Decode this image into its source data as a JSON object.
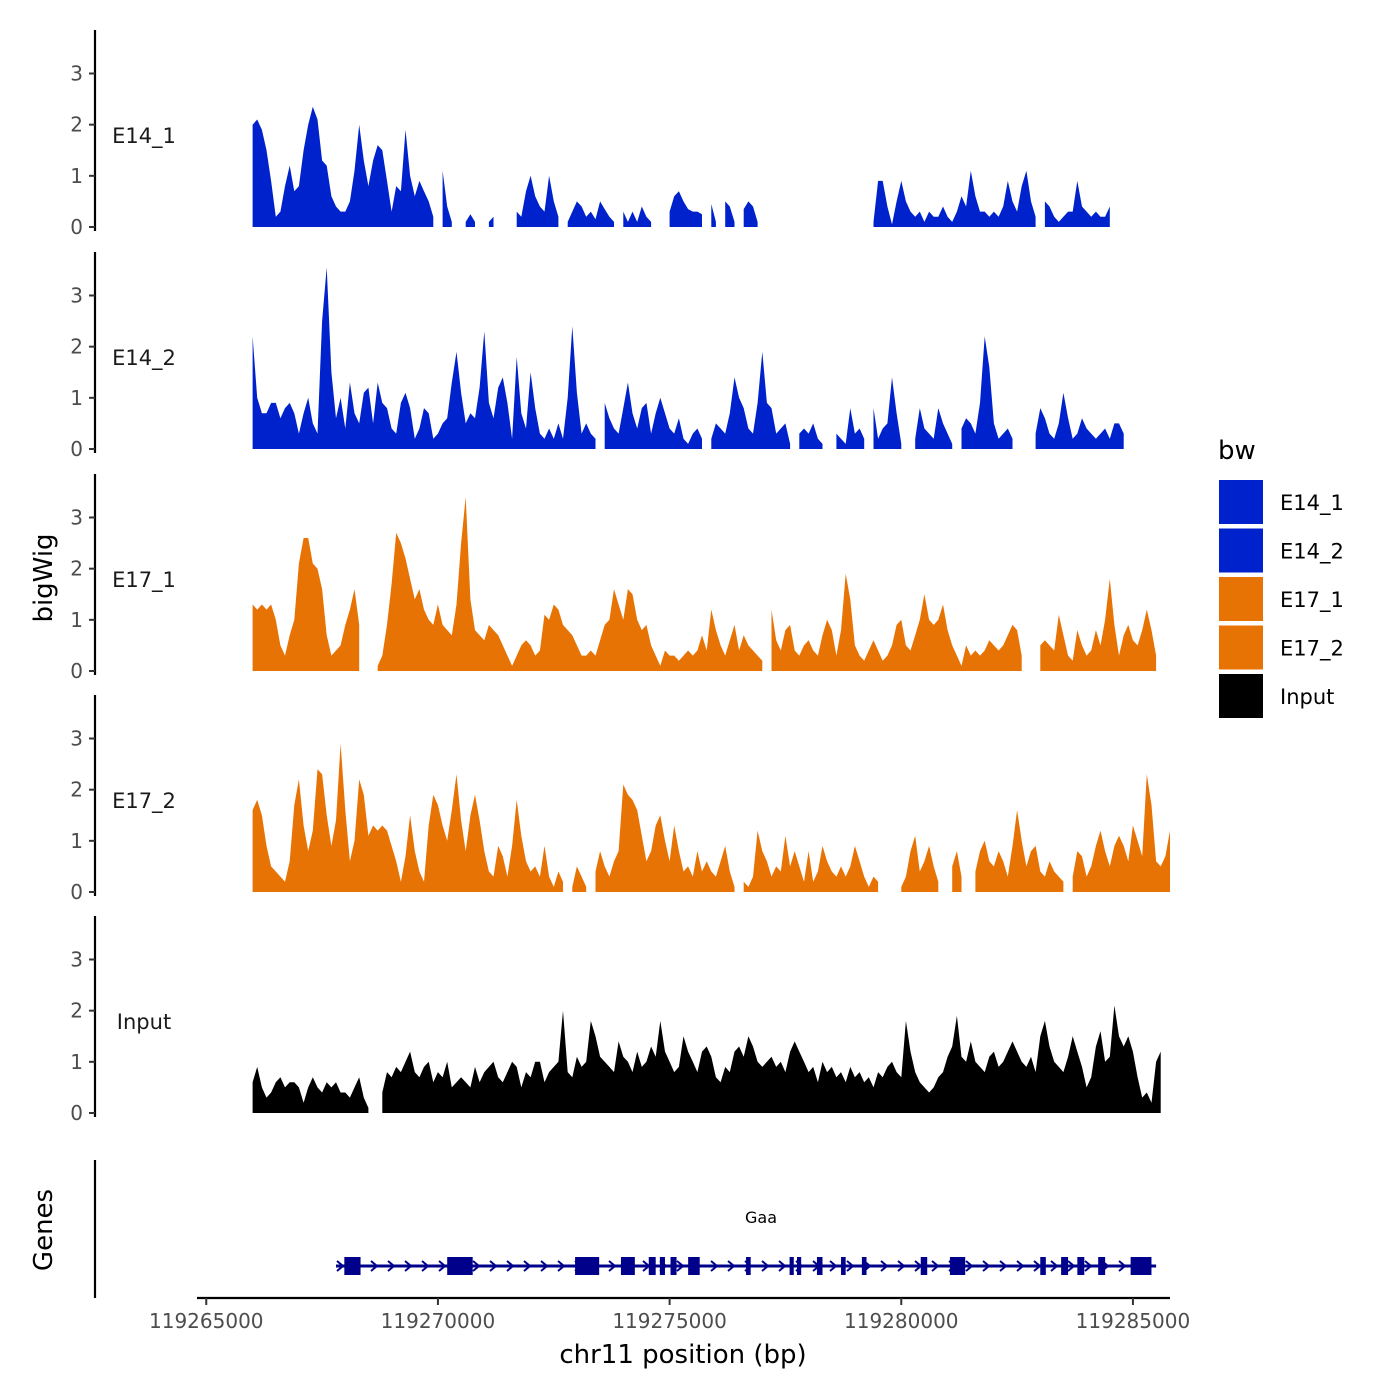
{
  "chart_data": {
    "type": "area",
    "xlabel": "chr11 position (bp)",
    "ylabel": "bigWig",
    "genes_label": "Genes",
    "xlim": [
      119264800,
      119285800
    ],
    "xticks": [
      119265000,
      119270000,
      119275000,
      119280000,
      119285000
    ],
    "xtick_labels": [
      "119265000",
      "119270000",
      "119275000",
      "119280000",
      "119285000"
    ],
    "ylim": [
      0,
      3.85
    ],
    "yticks": [
      0,
      1,
      2,
      3
    ],
    "ytick_labels": [
      "0",
      "1",
      "2",
      "3"
    ],
    "legend": {
      "title": "bw",
      "position": "right",
      "entries": [
        {
          "label": "E14_1",
          "color": "#0022CC"
        },
        {
          "label": "E14_2",
          "color": "#0022CC"
        },
        {
          "label": "E17_1",
          "color": "#E87305"
        },
        {
          "label": "E17_2",
          "color": "#E87305"
        },
        {
          "label": "Input",
          "color": "#000000"
        }
      ]
    },
    "x_start": 119266000,
    "x_step": 100,
    "series": [
      {
        "name": "E14_1",
        "color": "#0022CC",
        "values": [
          2.0,
          2.1,
          1.9,
          1.5,
          0.9,
          0.2,
          0.3,
          0.8,
          1.2,
          0.7,
          0.8,
          1.5,
          2.0,
          2.35,
          2.1,
          1.3,
          1.2,
          0.6,
          0.4,
          0.3,
          0.3,
          0.5,
          1.1,
          2.0,
          1.3,
          0.8,
          1.3,
          1.6,
          1.5,
          0.9,
          0.3,
          0.8,
          0.7,
          1.9,
          1.0,
          0.6,
          0.9,
          0.7,
          0.5,
          0.2,
          null,
          1.1,
          0.4,
          0.1,
          null,
          null,
          0.1,
          0.25,
          0.1,
          null,
          null,
          0.1,
          0.2,
          null,
          null,
          null,
          null,
          0.3,
          0.2,
          0.7,
          1.0,
          0.6,
          0.4,
          0.3,
          1.0,
          0.5,
          0.2,
          null,
          0.1,
          0.3,
          0.5,
          0.4,
          0.2,
          0.3,
          0.15,
          0.5,
          0.35,
          0.2,
          0.1,
          null,
          0.3,
          0.1,
          0.3,
          0.1,
          0.4,
          0.2,
          0.1,
          null,
          null,
          null,
          0.3,
          0.6,
          0.7,
          0.5,
          0.35,
          0.3,
          0.3,
          0.25,
          null,
          0.45,
          0.1,
          null,
          0.5,
          0.4,
          0.1,
          null,
          0.35,
          0.5,
          0.4,
          0.1,
          null,
          null,
          null,
          null,
          null,
          null,
          null,
          null,
          null,
          null,
          null,
          null,
          null,
          null,
          null,
          null,
          null,
          null,
          null,
          null,
          null,
          null,
          null,
          null,
          0.1,
          0.9,
          0.9,
          0.4,
          0.05,
          0.5,
          0.9,
          0.5,
          0.3,
          0.2,
          0.3,
          0.1,
          0.3,
          0.2,
          0.2,
          0.4,
          0.2,
          0.1,
          0.3,
          0.6,
          0.4,
          1.1,
          0.6,
          0.3,
          0.3,
          0.2,
          0.3,
          0.2,
          0.4,
          0.9,
          0.5,
          0.3,
          0.8,
          1.1,
          0.5,
          0.2,
          null,
          0.5,
          0.4,
          0.2,
          0.1,
          0.2,
          0.3,
          0.3,
          0.9,
          0.4,
          0.3,
          0.2,
          0.3,
          0.2,
          0.2,
          0.4
        ]
      },
      {
        "name": "E14_2",
        "color": "#0022CC",
        "values": [
          2.2,
          1.0,
          0.7,
          0.7,
          0.9,
          0.9,
          0.6,
          0.8,
          0.9,
          0.7,
          0.3,
          0.7,
          1.0,
          0.5,
          0.3,
          2.5,
          3.55,
          1.5,
          0.6,
          1.0,
          0.4,
          1.3,
          0.7,
          0.5,
          1.1,
          1.2,
          0.5,
          1.3,
          0.9,
          0.8,
          0.4,
          0.3,
          0.9,
          1.1,
          0.8,
          0.2,
          0.4,
          0.8,
          0.7,
          0.2,
          0.3,
          0.5,
          0.6,
          1.3,
          1.9,
          1.1,
          0.5,
          0.7,
          0.6,
          1.2,
          2.3,
          0.9,
          0.6,
          1.2,
          1.4,
          0.9,
          0.2,
          1.8,
          0.7,
          0.4,
          1.5,
          0.8,
          0.3,
          0.2,
          0.4,
          0.2,
          0.5,
          0.2,
          1.0,
          2.4,
          1.1,
          0.3,
          0.5,
          0.3,
          0.2,
          null,
          0.9,
          0.6,
          0.4,
          0.3,
          0.8,
          1.3,
          0.7,
          0.4,
          0.8,
          0.9,
          0.3,
          0.7,
          1.0,
          0.7,
          0.4,
          0.3,
          0.6,
          0.2,
          0.1,
          0.3,
          0.4,
          0.2,
          null,
          0.2,
          0.5,
          0.4,
          0.3,
          0.7,
          1.4,
          1.0,
          0.8,
          0.4,
          0.3,
          0.9,
          1.9,
          0.9,
          0.8,
          0.3,
          0.4,
          0.5,
          0.1,
          null,
          0.3,
          0.4,
          0.3,
          0.5,
          0.2,
          0.1,
          null,
          null,
          0.3,
          0.2,
          0.1,
          0.8,
          0.3,
          0.4,
          0.2,
          null,
          0.8,
          0.2,
          0.4,
          0.5,
          1.4,
          0.7,
          0.1,
          null,
          null,
          0.2,
          0.8,
          0.4,
          0.3,
          0.2,
          0.8,
          0.5,
          0.3,
          0.1,
          null,
          0.4,
          0.6,
          0.5,
          0.3,
          0.9,
          2.2,
          1.6,
          0.5,
          0.2,
          0.3,
          0.4,
          0.2,
          null,
          null,
          null,
          null,
          0.3,
          0.8,
          0.6,
          0.3,
          0.2,
          0.5,
          1.1,
          0.6,
          0.2,
          0.3,
          0.6,
          0.4,
          0.3,
          0.2,
          0.3,
          0.4,
          0.2,
          0.5,
          0.5,
          0.3
        ]
      },
      {
        "name": "E17_1",
        "color": "#E87305",
        "values": [
          1.3,
          1.2,
          1.3,
          1.2,
          1.3,
          1.0,
          0.5,
          0.3,
          0.7,
          1.0,
          2.1,
          2.6,
          2.6,
          2.1,
          2.0,
          1.6,
          0.7,
          0.3,
          0.4,
          0.5,
          0.9,
          1.2,
          1.6,
          0.9,
          null,
          null,
          null,
          0.1,
          0.3,
          0.9,
          1.7,
          2.7,
          2.5,
          2.2,
          1.8,
          1.4,
          1.6,
          1.2,
          1.0,
          0.9,
          1.3,
          0.9,
          0.8,
          0.7,
          1.3,
          2.5,
          3.4,
          1.4,
          0.8,
          0.7,
          0.6,
          0.9,
          0.8,
          0.7,
          0.5,
          0.3,
          0.1,
          0.3,
          0.5,
          0.6,
          0.5,
          0.3,
          0.4,
          1.1,
          1.0,
          1.3,
          1.2,
          0.9,
          0.8,
          0.7,
          0.5,
          0.3,
          0.3,
          0.4,
          0.3,
          0.6,
          0.9,
          1.0,
          1.6,
          1.3,
          1.0,
          1.6,
          1.5,
          1.0,
          0.8,
          0.9,
          0.5,
          0.3,
          0.1,
          0.4,
          0.3,
          0.3,
          0.2,
          0.3,
          0.4,
          0.3,
          0.4,
          0.7,
          0.4,
          1.2,
          0.8,
          0.5,
          0.3,
          0.6,
          0.9,
          0.4,
          0.7,
          0.5,
          0.4,
          0.3,
          0.2,
          null,
          1.2,
          0.6,
          0.4,
          0.8,
          0.9,
          0.4,
          0.3,
          0.5,
          0.6,
          0.4,
          0.3,
          0.7,
          1.0,
          0.8,
          0.3,
          0.8,
          1.9,
          1.4,
          0.5,
          0.3,
          0.2,
          0.4,
          0.6,
          0.4,
          0.2,
          0.3,
          0.5,
          0.9,
          1.0,
          0.5,
          0.4,
          0.7,
          1.0,
          1.5,
          1.0,
          0.9,
          1.0,
          1.3,
          0.8,
          0.5,
          0.3,
          0.1,
          0.5,
          0.3,
          0.4,
          0.3,
          0.4,
          0.6,
          0.5,
          0.4,
          0.5,
          0.7,
          0.9,
          0.8,
          0.3,
          null,
          null,
          null,
          0.5,
          0.6,
          0.5,
          0.4,
          1.1,
          0.7,
          0.3,
          0.2,
          0.8,
          0.5,
          0.3,
          0.4,
          0.8,
          0.5,
          1.0,
          1.8,
          0.9,
          0.3,
          0.7,
          0.9,
          0.6,
          0.5,
          0.8,
          1.2,
          0.8,
          0.3
        ]
      },
      {
        "name": "E17_2",
        "color": "#E87305",
        "values": [
          1.6,
          1.8,
          1.5,
          0.9,
          0.5,
          0.4,
          0.3,
          0.2,
          0.6,
          1.7,
          2.2,
          1.3,
          0.8,
          1.2,
          2.4,
          2.3,
          1.5,
          0.9,
          1.4,
          2.9,
          1.6,
          0.6,
          1.0,
          2.2,
          1.9,
          1.1,
          1.3,
          1.2,
          1.3,
          1.2,
          0.9,
          0.6,
          0.2,
          0.7,
          1.5,
          0.8,
          0.4,
          0.2,
          1.3,
          1.9,
          1.7,
          1.3,
          1.0,
          1.6,
          2.3,
          1.4,
          0.8,
          1.5,
          1.9,
          1.4,
          0.8,
          0.4,
          0.3,
          0.9,
          0.7,
          0.3,
          0.9,
          1.8,
          1.1,
          0.6,
          0.4,
          0.5,
          0.3,
          0.9,
          0.3,
          0.1,
          0.4,
          0.2,
          null,
          0.1,
          0.5,
          0.3,
          0.1,
          null,
          0.4,
          0.8,
          0.5,
          0.3,
          0.6,
          0.8,
          2.1,
          1.9,
          1.8,
          1.6,
          1.1,
          0.6,
          0.8,
          1.3,
          1.5,
          1.0,
          0.6,
          1.3,
          0.8,
          0.4,
          0.5,
          0.3,
          0.8,
          0.4,
          0.6,
          0.4,
          0.3,
          0.6,
          0.9,
          0.4,
          0.1,
          null,
          0.2,
          0.1,
          0.3,
          1.2,
          0.8,
          0.6,
          0.3,
          0.5,
          0.4,
          1.1,
          0.5,
          0.8,
          0.5,
          0.2,
          0.8,
          0.2,
          0.4,
          0.9,
          0.6,
          0.4,
          0.3,
          0.5,
          0.3,
          0.5,
          0.9,
          0.6,
          0.3,
          0.1,
          0.3,
          0.2,
          null,
          null,
          0.1,
          null,
          0.1,
          0.3,
          0.8,
          1.1,
          0.4,
          0.6,
          0.9,
          0.5,
          0.2,
          null,
          null,
          0.5,
          0.8,
          0.3,
          null,
          null,
          0.4,
          0.8,
          1.0,
          0.6,
          0.5,
          0.8,
          0.6,
          0.3,
          0.9,
          1.6,
          1.0,
          0.5,
          0.8,
          0.9,
          0.4,
          0.3,
          0.6,
          0.4,
          0.3,
          0.2,
          null,
          0.3,
          0.8,
          0.7,
          0.3,
          0.5,
          0.9,
          1.2,
          0.8,
          0.5,
          0.9,
          1.1,
          0.9,
          0.6,
          1.3,
          1.0,
          0.7,
          2.3,
          1.7,
          0.6,
          0.5,
          0.7,
          1.2
        ]
      },
      {
        "name": "Input",
        "color": "#000000",
        "values": [
          0.6,
          0.9,
          0.5,
          0.3,
          0.4,
          0.6,
          0.7,
          0.5,
          0.6,
          0.6,
          0.5,
          0.2,
          0.5,
          0.7,
          0.5,
          0.4,
          0.6,
          0.5,
          0.6,
          0.4,
          0.4,
          0.3,
          0.5,
          0.7,
          0.3,
          0.1,
          null,
          null,
          0.4,
          0.8,
          0.7,
          0.9,
          0.8,
          1.0,
          1.2,
          0.8,
          0.7,
          0.9,
          1.0,
          0.6,
          0.8,
          0.7,
          1.0,
          0.5,
          0.6,
          0.7,
          0.6,
          0.5,
          0.9,
          0.6,
          0.8,
          0.9,
          1.0,
          0.7,
          0.6,
          0.8,
          1.0,
          0.9,
          0.5,
          0.8,
          0.7,
          1.0,
          1.0,
          0.6,
          0.8,
          0.9,
          1.0,
          2.0,
          0.8,
          0.7,
          1.1,
          0.9,
          1.0,
          1.8,
          1.5,
          1.1,
          1.0,
          0.9,
          0.8,
          1.4,
          1.1,
          1.0,
          0.8,
          1.2,
          0.9,
          1.0,
          1.3,
          1.1,
          1.8,
          1.2,
          1.0,
          0.8,
          0.9,
          1.5,
          1.2,
          1.0,
          0.8,
          1.2,
          1.3,
          1.1,
          0.7,
          0.6,
          0.9,
          0.8,
          1.2,
          1.3,
          1.1,
          1.5,
          1.3,
          1.0,
          0.9,
          1.0,
          1.1,
          0.9,
          1.0,
          0.8,
          1.2,
          1.4,
          1.2,
          1.0,
          0.8,
          0.9,
          0.6,
          1.0,
          0.8,
          0.9,
          0.7,
          0.8,
          0.6,
          0.9,
          0.7,
          0.8,
          0.6,
          0.7,
          0.5,
          0.8,
          0.7,
          0.9,
          1.0,
          0.8,
          0.7,
          1.8,
          1.2,
          0.8,
          0.6,
          0.5,
          0.4,
          0.5,
          0.7,
          0.8,
          1.1,
          1.3,
          1.9,
          1.1,
          1.0,
          1.4,
          1.0,
          0.9,
          0.8,
          1.1,
          1.2,
          0.9,
          1.0,
          1.2,
          1.4,
          1.2,
          1.0,
          0.9,
          1.1,
          0.8,
          1.5,
          1.8,
          1.3,
          1.0,
          0.9,
          0.8,
          1.1,
          1.5,
          1.2,
          0.9,
          0.5,
          0.7,
          1.3,
          1.6,
          1.0,
          1.1,
          2.1,
          1.5,
          1.3,
          1.5,
          1.2,
          0.7,
          0.3,
          0.4,
          0.2,
          1.0,
          1.2
        ]
      }
    ],
    "genes": [
      {
        "name": "Gaa",
        "start": 119267800,
        "end": 119285500,
        "strand": "+",
        "exons": [
          [
            119267980,
            119268330
          ],
          [
            119270200,
            119270750
          ],
          [
            119272960,
            119273480
          ],
          [
            119273950,
            119274250
          ],
          [
            119274550,
            119274700
          ],
          [
            119274790,
            119274900
          ],
          [
            119275020,
            119275150
          ],
          [
            119275400,
            119275650
          ],
          [
            119276650,
            119276750
          ],
          [
            119277590,
            119277680
          ],
          [
            119277750,
            119277840
          ],
          [
            119278180,
            119278300
          ],
          [
            119278700,
            119278800
          ],
          [
            119279150,
            119279250
          ],
          [
            119280420,
            119280560
          ],
          [
            119281050,
            119281380
          ],
          [
            119283000,
            119283120
          ],
          [
            119283450,
            119283600
          ],
          [
            119283800,
            119283950
          ],
          [
            119284250,
            119284400
          ],
          [
            119284950,
            119285400
          ]
        ]
      }
    ]
  }
}
